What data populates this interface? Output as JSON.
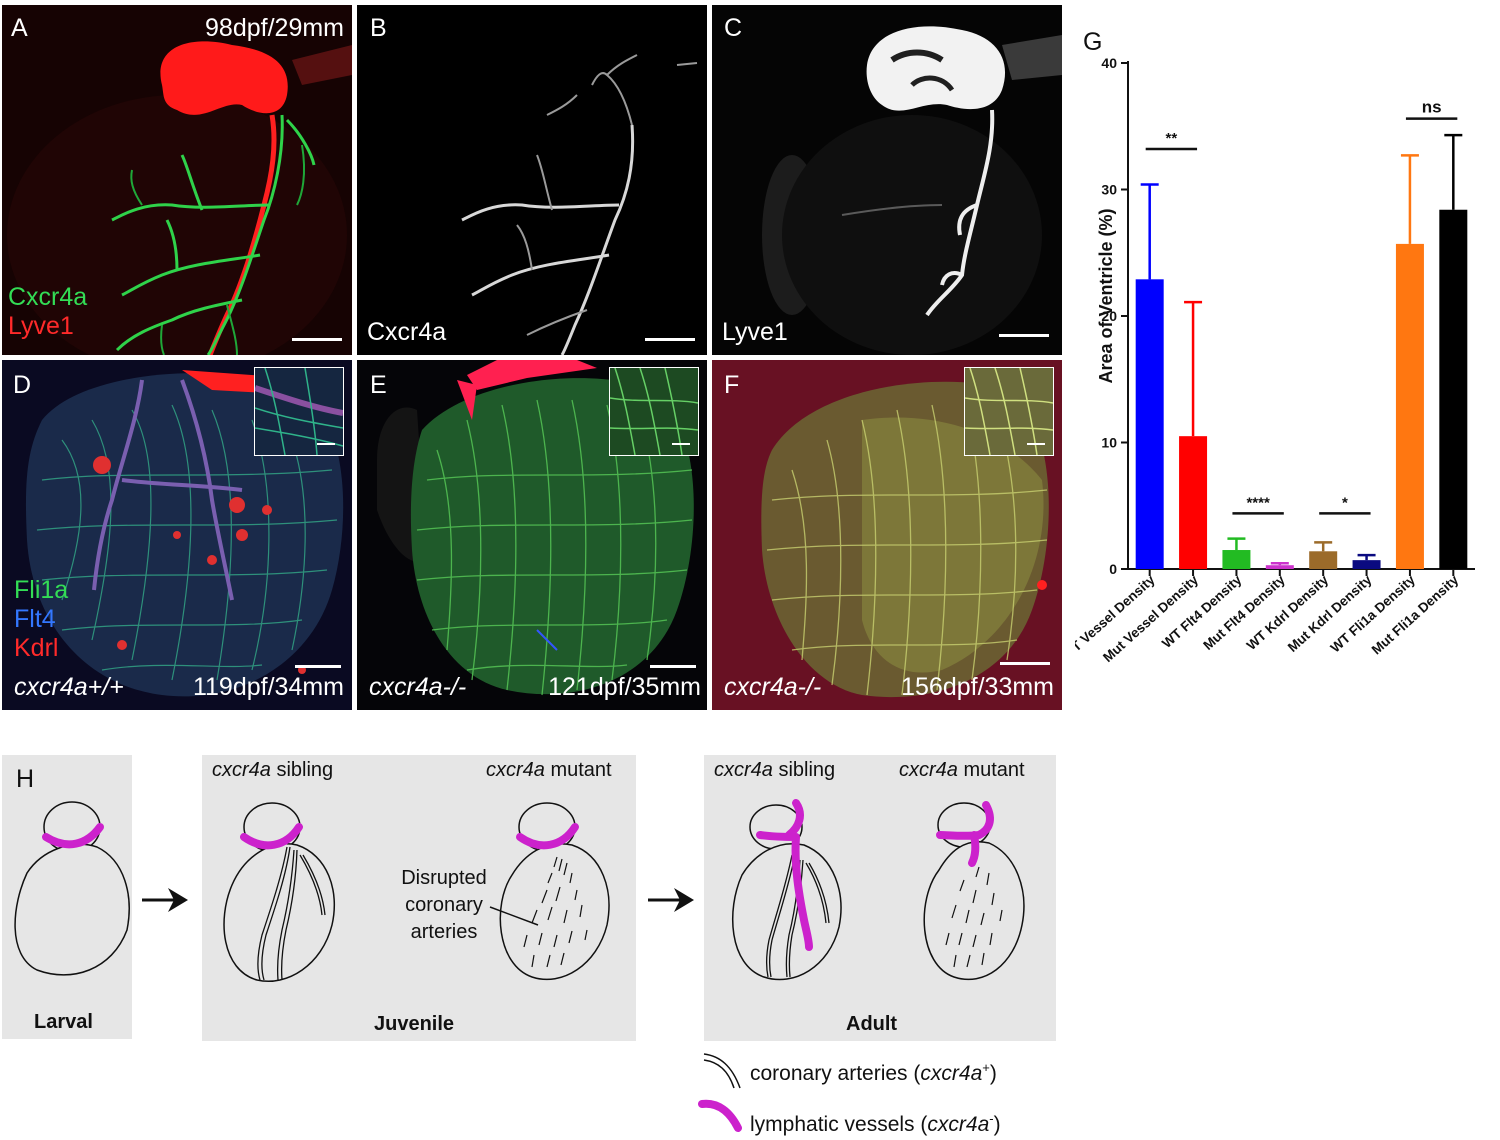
{
  "panels": {
    "A": {
      "letter": "A",
      "info": "98dpf/29mm",
      "channels": [
        {
          "name": "Cxcr4a",
          "color": "#33dd55"
        },
        {
          "name": "Lyve1",
          "color": "#ff2a2a"
        }
      ]
    },
    "B": {
      "letter": "B",
      "channel": "Cxcr4a"
    },
    "C": {
      "letter": "C",
      "channel": "Lyve1"
    },
    "D": {
      "letter": "D",
      "genotype": "cxcr4a+/+",
      "info": "119dpf/34mm",
      "channels": [
        {
          "name": "Fli1a",
          "color": "#33dd55"
        },
        {
          "name": "Flt4",
          "color": "#3377ff"
        },
        {
          "name": "Kdrl",
          "color": "#ff2a2a"
        }
      ]
    },
    "E": {
      "letter": "E",
      "genotype": "cxcr4a-/-",
      "info": "121dpf/35mm"
    },
    "F": {
      "letter": "F",
      "genotype": "cxcr4a-/-",
      "info": "156dpf/33mm"
    }
  },
  "chart_data": {
    "type": "bar",
    "panel_letter": "G",
    "ylabel": "Area of Ventricle (%)",
    "ylim": [
      0,
      40
    ],
    "yticks": [
      "0",
      "10",
      "20",
      "30",
      "40"
    ],
    "categories": [
      "WT Vessel Density",
      "Mut Vessel Density",
      "WT Flt4 Density",
      "Mut Flt4 Density",
      "WT Kdrl Density",
      "Mut Kdrl Density",
      "WT Fli1a Density",
      "Mut Fli1a Density"
    ],
    "values": [
      22.9,
      10.5,
      1.5,
      0.3,
      1.4,
      0.7,
      25.7,
      28.4
    ],
    "errors": [
      7.5,
      10.6,
      0.9,
      0.15,
      0.7,
      0.4,
      7.0,
      5.9
    ],
    "colors": [
      "#0000ff",
      "#ff0000",
      "#22bb22",
      "#cc33cc",
      "#9b6b2a",
      "#0a0a80",
      "#ff7711",
      "#000000"
    ],
    "significance": [
      {
        "pair": [
          0,
          1
        ],
        "label": "**",
        "y": 33.2
      },
      {
        "pair": [
          2,
          3
        ],
        "label": "****",
        "y": 4.4
      },
      {
        "pair": [
          4,
          5
        ],
        "label": "*",
        "y": 4.4
      },
      {
        "pair": [
          6,
          7
        ],
        "label": "ns",
        "y": 35.6
      }
    ]
  },
  "schematic": {
    "letter": "H",
    "larval": "Larval",
    "juvenile": "Juvenile",
    "adult": "Adult",
    "juv_sibling_gene": "cxcr4a",
    "juv_sibling_rest": " sibling",
    "juv_mutant_gene": "cxcr4a",
    "juv_mutant_rest": " mutant",
    "adult_sibling_gene": "cxcr4a",
    "adult_sibling_rest": " sibling",
    "adult_mutant_gene": "cxcr4a",
    "adult_mutant_rest": " mutant",
    "disrupted": [
      "Disrupted",
      "coronary",
      "arteries"
    ],
    "lymph_color": "#cc22cc",
    "legend": {
      "coronary_text": "coronary arteries (",
      "coronary_gene": "cxcr4a",
      "coronary_sup": "+",
      "lymph_text": "lymphatic vessels (",
      "lymph_gene": "cxcr4a",
      "lymph_sup": "-",
      "close": ")"
    }
  }
}
